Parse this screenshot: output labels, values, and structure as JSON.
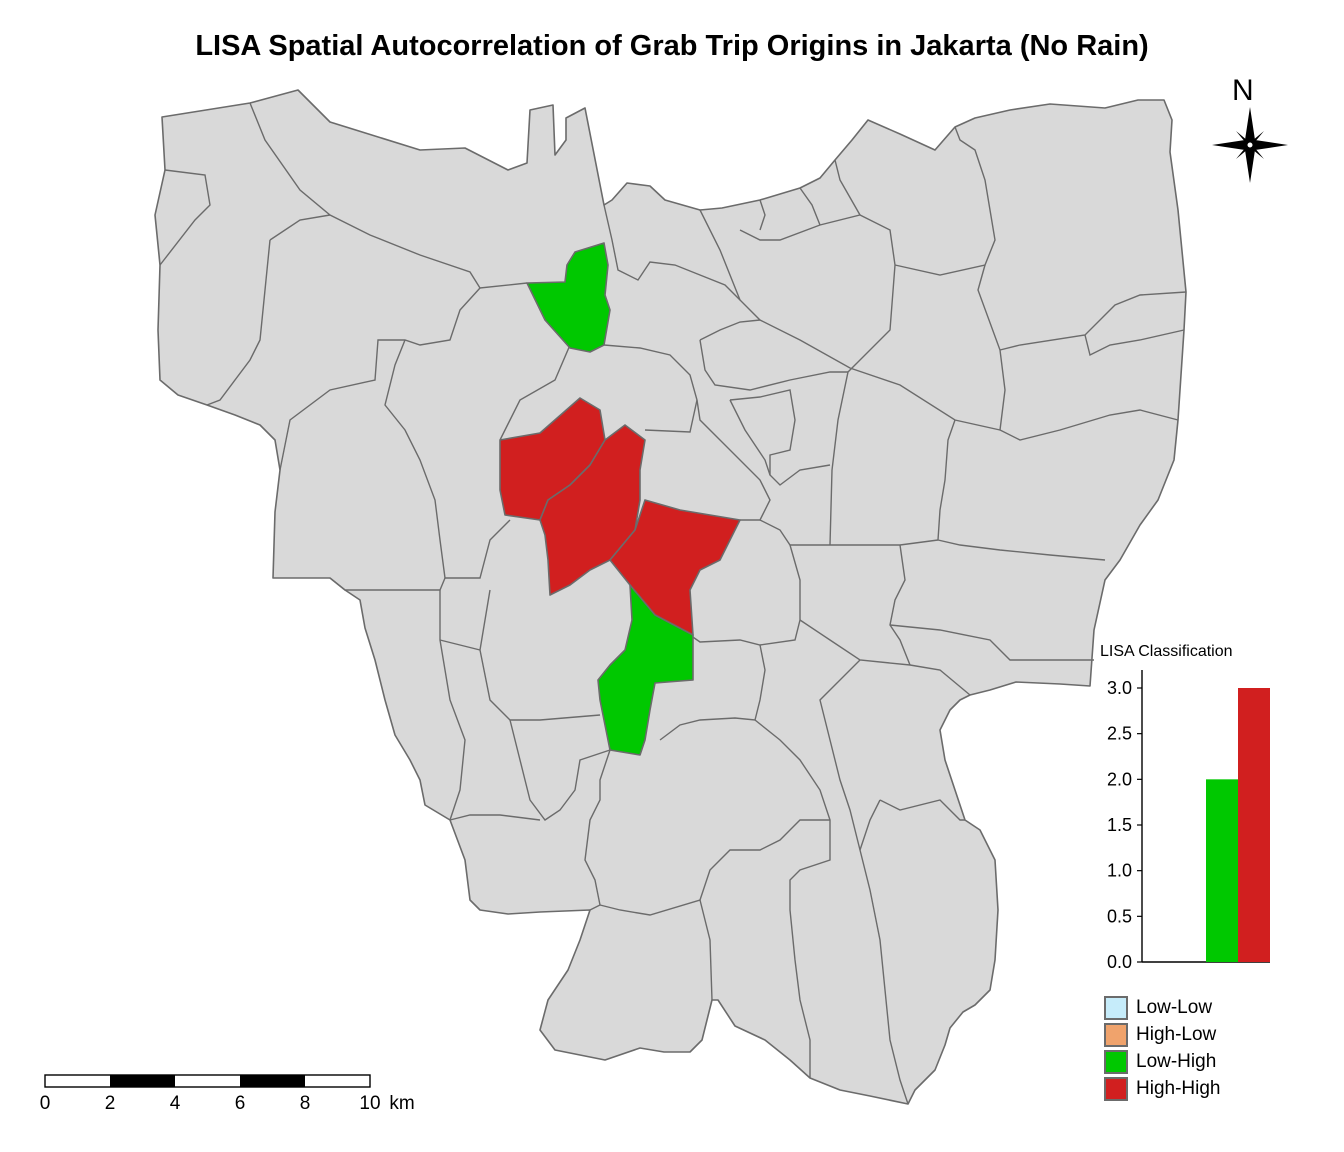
{
  "title": "LISA Spatial Autocorrelation of Grab Trip Origins in Jakarta (No Rain)",
  "north_arrow": {
    "label": "N"
  },
  "legend": {
    "title": "LISA Classification",
    "items": [
      {
        "label": "Low-Low",
        "color": "#c6ecfa"
      },
      {
        "label": "High-Low",
        "color": "#f0a36c"
      },
      {
        "label": "Low-High",
        "color": "#00c800"
      },
      {
        "label": "High-High",
        "color": "#d11f1f"
      }
    ]
  },
  "chart_data": {
    "type": "bar",
    "title": "LISA Classification",
    "categories": [
      "Low-Low",
      "High-Low",
      "Low-High",
      "High-High"
    ],
    "values": [
      0,
      0,
      2,
      3
    ],
    "colors": [
      "#c6ecfa",
      "#f0a36c",
      "#00c800",
      "#d11f1f"
    ],
    "ylim": [
      0,
      3
    ],
    "yticks": [
      "0.0",
      "0.5",
      "1.0",
      "1.5",
      "2.0",
      "2.5",
      "3.0"
    ]
  },
  "map": {
    "fill_default": "#d9d9d9",
    "border_color": "#6b6b6b",
    "regions_high_high": 3,
    "regions_low_high": 2
  },
  "scale_bar": {
    "ticks": [
      "0",
      "2",
      "4",
      "6",
      "8",
      "10"
    ],
    "unit": "km"
  }
}
